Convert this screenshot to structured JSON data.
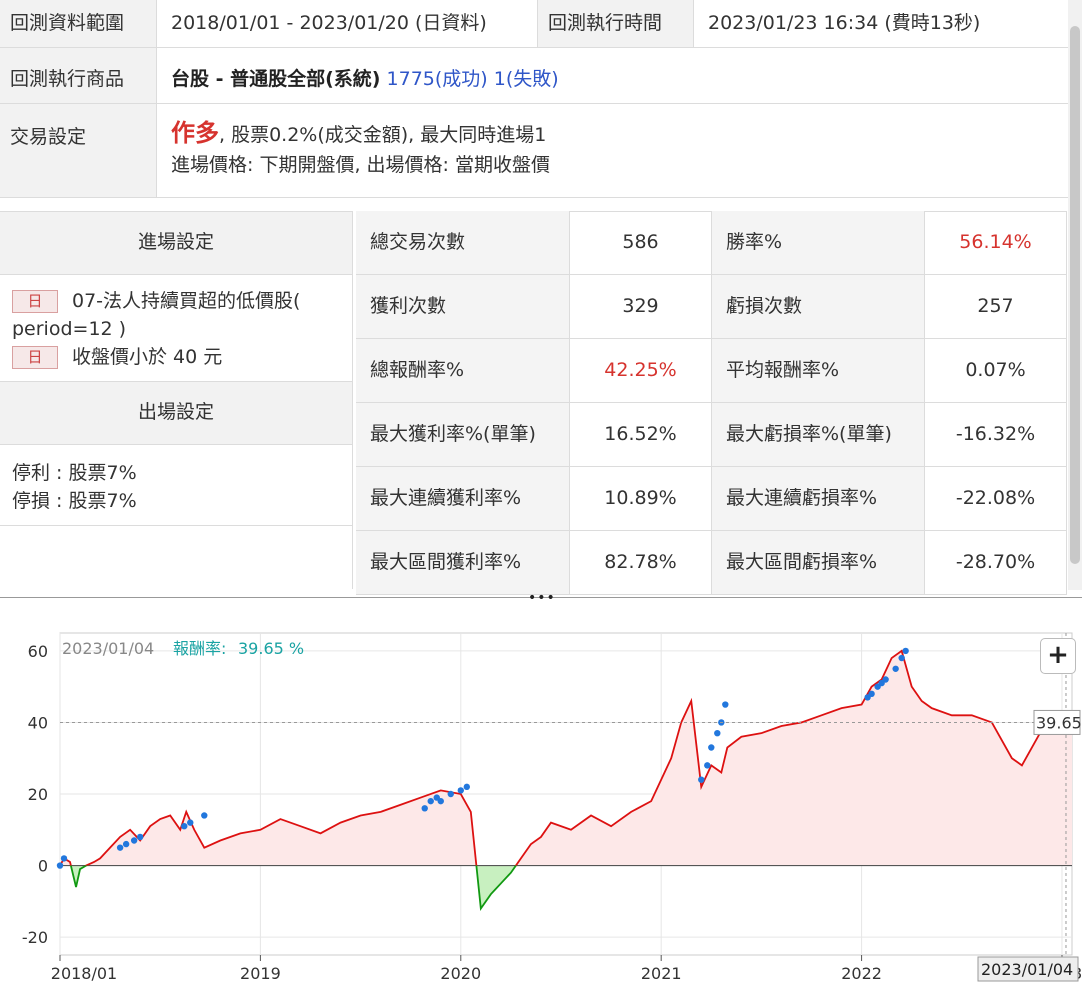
{
  "backtest": {
    "range_label": "回測資料範圍",
    "range_value": "2018/01/01 - 2023/01/20 (日資料)",
    "exec_time_label": "回測執行時間",
    "exec_time_value": "2023/01/23 16:34 (費時13秒)",
    "product_label": "回測執行商品",
    "product_name": "台股 - 普通股全部(系統)",
    "product_success": "1775(成功)",
    "product_fail": "1(失敗)",
    "trade_label": "交易設定",
    "trade_direction": "作多",
    "trade_line1_rest": ", 股票0.2%(成交金額), 最大同時進場1",
    "trade_line2": "進場價格: 下期開盤價, 出場價格: 當期收盤價"
  },
  "entry": {
    "header": "進場設定",
    "items": [
      {
        "tag": "日",
        "text": "07-法人持續買超的低價股(",
        "text2": "period=12 )"
      },
      {
        "tag": "日",
        "text": "收盤價小於 40 元"
      }
    ]
  },
  "exit": {
    "header": "出場設定",
    "lines": [
      "停利 : 股票7%",
      "停損 : 股票7%"
    ]
  },
  "stats": [
    {
      "label": "總交易次數",
      "value": "586",
      "label2": "勝率%",
      "value2": "56.14%",
      "red2": true
    },
    {
      "label": "獲利次數",
      "value": "329",
      "label2": "虧損次數",
      "value2": "257"
    },
    {
      "label": "總報酬率%",
      "value": "42.25%",
      "red": true,
      "label2": "平均報酬率%",
      "value2": "0.07%"
    },
    {
      "label": "最大獲利率%(單筆)",
      "value": "16.52%",
      "label2": "最大虧損率%(單筆)",
      "value2": "-16.32%"
    },
    {
      "label": "最大連續獲利率%",
      "value": "10.89%",
      "label2": "最大連續虧損率%",
      "value2": "-22.08%"
    },
    {
      "label": "最大區間獲利率%",
      "value": "82.78%",
      "label2": "最大區間虧損率%",
      "value2": "-28.70%"
    }
  ],
  "chart_data": {
    "type": "area",
    "tooltip_date": "2023/01/04",
    "tooltip_label": "報酬率:",
    "tooltip_value": "39.65 %",
    "current_value_label": "39.65",
    "cursor_date_label": "2023/01/04",
    "x_tick_labels": [
      "2018/01",
      "2019",
      "2020",
      "2021",
      "2022",
      "2023"
    ],
    "y_tick_labels": [
      "60",
      "40",
      "20",
      "0",
      "-20"
    ],
    "ylim": [
      -25,
      65
    ],
    "xlim": [
      2018.0,
      2023.05
    ],
    "colors": {
      "positive_line": "#dd1111",
      "negative_line": "#119911",
      "marker": "#2277dd",
      "positive_fill": "#fde8e8",
      "negative_fill": "#c8f0c0"
    },
    "x": [
      2018.0,
      2018.02,
      2018.05,
      2018.08,
      2018.1,
      2018.13,
      2018.17,
      2018.2,
      2018.25,
      2018.3,
      2018.35,
      2018.4,
      2018.45,
      2018.5,
      2018.55,
      2018.6,
      2018.63,
      2018.67,
      2018.72,
      2018.8,
      2018.9,
      2019.0,
      2019.1,
      2019.2,
      2019.3,
      2019.4,
      2019.5,
      2019.6,
      2019.7,
      2019.8,
      2019.9,
      2020.0,
      2020.05,
      2020.1,
      2020.15,
      2020.2,
      2020.25,
      2020.3,
      2020.35,
      2020.4,
      2020.45,
      2020.55,
      2020.65,
      2020.75,
      2020.85,
      2020.95,
      2021.05,
      2021.1,
      2021.15,
      2021.2,
      2021.25,
      2021.3,
      2021.33,
      2021.4,
      2021.5,
      2021.6,
      2021.7,
      2021.8,
      2021.9,
      2022.0,
      2022.05,
      2022.1,
      2022.15,
      2022.2,
      2022.25,
      2022.3,
      2022.35,
      2022.45,
      2022.55,
      2022.65,
      2022.75,
      2022.8,
      2022.9,
      2023.0,
      2023.05
    ],
    "y": [
      0,
      2,
      1,
      -6,
      -1,
      0,
      1,
      2,
      5,
      8,
      10,
      7,
      11,
      13,
      14,
      10,
      15,
      10,
      5,
      7,
      9,
      10,
      13,
      11,
      9,
      12,
      14,
      15,
      17,
      19,
      21,
      20,
      15,
      -12,
      -8,
      -5,
      -2,
      2,
      6,
      8,
      12,
      10,
      14,
      11,
      15,
      18,
      30,
      40,
      46,
      22,
      28,
      26,
      33,
      36,
      37,
      39,
      40,
      42,
      44,
      45,
      50,
      52,
      58,
      60,
      50,
      46,
      44,
      42,
      42,
      40,
      30,
      28,
      38,
      40,
      42
    ],
    "markers_x": [
      2018.0,
      2018.02,
      2018.3,
      2018.33,
      2018.37,
      2018.4,
      2018.62,
      2018.65,
      2018.72,
      2019.82,
      2019.85,
      2019.88,
      2019.9,
      2019.95,
      2020.0,
      2020.03,
      2021.2,
      2021.23,
      2021.25,
      2021.28,
      2021.3,
      2021.32,
      2022.03,
      2022.05,
      2022.08,
      2022.1,
      2022.12,
      2022.17,
      2022.2,
      2022.22
    ],
    "markers_y": [
      0,
      2,
      5,
      6,
      7,
      8,
      11,
      12,
      14,
      16,
      18,
      19,
      18,
      20,
      21,
      22,
      24,
      28,
      33,
      37,
      40,
      45,
      47,
      48,
      50,
      51,
      52,
      55,
      58,
      60
    ]
  }
}
